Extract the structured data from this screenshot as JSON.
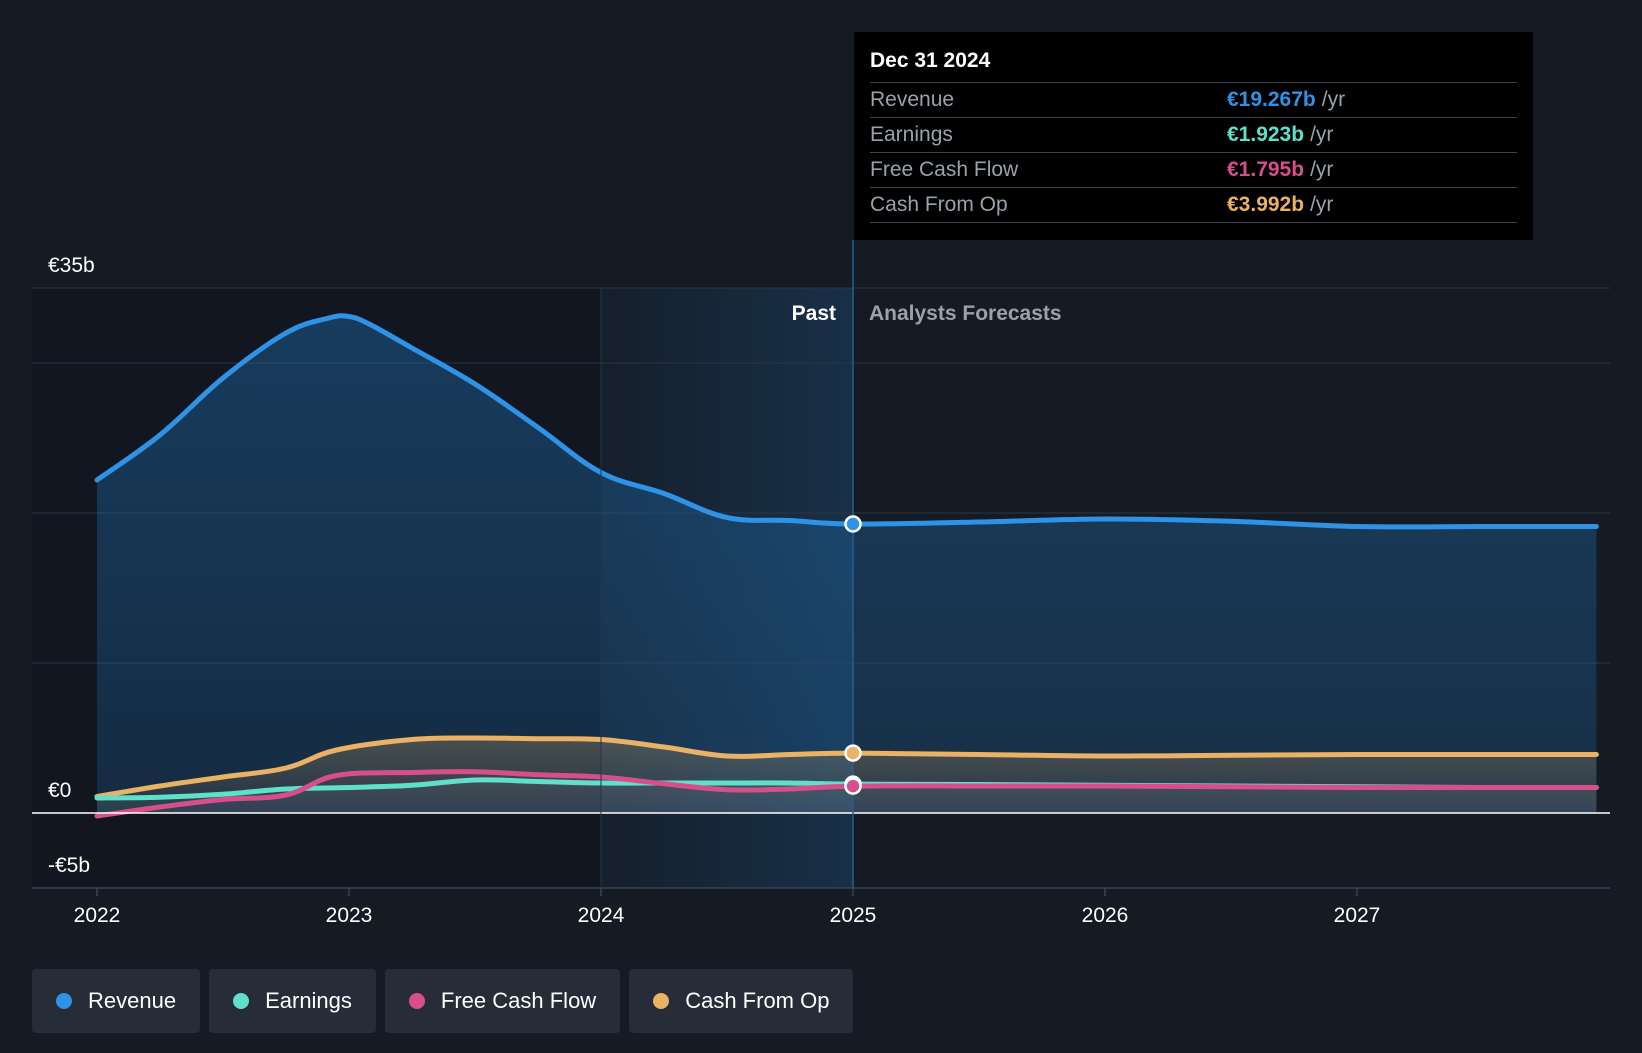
{
  "colors": {
    "background": "#151b25",
    "revenue": "#2e93e6",
    "earnings": "#5ee0cb",
    "free_cash_flow": "#d64f8b",
    "cash_from_op": "#e9b264",
    "past_shade": "#1a4a73"
  },
  "labels": {
    "past": "Past",
    "forecast": "Analysts Forecasts"
  },
  "tooltip": {
    "date": "Dec 31 2024",
    "rows": [
      {
        "label": "Revenue",
        "value": "€19.267b",
        "unit": "/yr",
        "color": "#2e93e6"
      },
      {
        "label": "Earnings",
        "value": "€1.923b",
        "unit": "/yr",
        "color": "#5ee0cb"
      },
      {
        "label": "Free Cash Flow",
        "value": "€1.795b",
        "unit": "/yr",
        "color": "#d64f8b"
      },
      {
        "label": "Cash From Op",
        "value": "€3.992b",
        "unit": "/yr",
        "color": "#e9b264"
      }
    ]
  },
  "legend": [
    {
      "label": "Revenue",
      "color": "#2e93e6",
      "icon": "revenue-dot-icon"
    },
    {
      "label": "Earnings",
      "color": "#5ee0cb",
      "icon": "earnings-dot-icon"
    },
    {
      "label": "Free Cash Flow",
      "color": "#d64f8b",
      "icon": "free-cash-flow-dot-icon"
    },
    {
      "label": "Cash From Op",
      "color": "#e9b264",
      "icon": "cash-from-op-dot-icon"
    }
  ],
  "chart_data": {
    "type": "line",
    "title": "",
    "xlabel": "",
    "ylabel": "",
    "ylim": [
      -5,
      35
    ],
    "xlim": [
      2021.75,
      2027.95
    ],
    "y_tick_labels": [
      {
        "value": 35,
        "label": "€35b"
      },
      {
        "value": 0,
        "label": "€0"
      },
      {
        "value": -5,
        "label": "-€5b"
      }
    ],
    "y_gridlines": [
      35,
      30,
      20,
      10,
      -5
    ],
    "x_ticks": [
      {
        "value": 2022,
        "label": "2022"
      },
      {
        "value": 2023,
        "label": "2023"
      },
      {
        "value": 2024,
        "label": "2024"
      },
      {
        "value": 2025,
        "label": "2025"
      },
      {
        "value": 2026,
        "label": "2026"
      },
      {
        "value": 2027,
        "label": "2027"
      }
    ],
    "past_shade_range": [
      2024,
      2025
    ],
    "divider_x": 2025,
    "marker_x": 2025,
    "series": [
      {
        "name": "Revenue",
        "key": "revenue",
        "x": [
          2022,
          2022.25,
          2022.5,
          2022.75,
          2022.92,
          2023,
          2023.08,
          2023.25,
          2023.5,
          2023.75,
          2024,
          2024.25,
          2024.5,
          2024.75,
          2025,
          2025.5,
          2026,
          2026.5,
          2027,
          2027.5,
          2027.95
        ],
        "values": [
          22.2,
          25.2,
          29.0,
          32.0,
          33.0,
          33.1,
          32.6,
          31.0,
          28.6,
          25.7,
          22.7,
          21.3,
          19.7,
          19.5,
          19.267,
          19.4,
          19.6,
          19.45,
          19.1,
          19.1,
          19.1
        ],
        "forecast_from": 2025
      },
      {
        "name": "Earnings",
        "key": "earnings",
        "x": [
          2022,
          2022.25,
          2022.5,
          2022.75,
          2023,
          2023.25,
          2023.5,
          2023.75,
          2024,
          2024.25,
          2024.5,
          2024.75,
          2025,
          2025.5,
          2026,
          2026.5,
          2027,
          2027.5,
          2027.95
        ],
        "values": [
          1.0,
          1.05,
          1.25,
          1.6,
          1.7,
          1.85,
          2.2,
          2.1,
          2.0,
          2.0,
          2.0,
          2.0,
          1.923,
          1.9,
          1.85,
          1.8,
          1.75,
          1.7,
          1.7
        ],
        "forecast_from": 2025
      },
      {
        "name": "Free Cash Flow",
        "key": "free_cash_flow",
        "x": [
          2022,
          2022.25,
          2022.5,
          2022.75,
          2022.95,
          2023.25,
          2023.5,
          2023.75,
          2024,
          2024.25,
          2024.5,
          2024.75,
          2025,
          2025.5,
          2026,
          2026.5,
          2027,
          2027.5,
          2027.95
        ],
        "values": [
          -0.2,
          0.4,
          0.9,
          1.2,
          2.5,
          2.7,
          2.75,
          2.55,
          2.4,
          1.95,
          1.55,
          1.6,
          1.795,
          1.8,
          1.8,
          1.75,
          1.7,
          1.7,
          1.7
        ],
        "forecast_from": 2025
      },
      {
        "name": "Cash From Op",
        "key": "cash_from_op",
        "x": [
          2022,
          2022.25,
          2022.5,
          2022.75,
          2022.95,
          2023.25,
          2023.5,
          2023.75,
          2024,
          2024.25,
          2024.5,
          2024.75,
          2025,
          2025.5,
          2026,
          2026.5,
          2027,
          2027.5,
          2027.95
        ],
        "values": [
          1.1,
          1.8,
          2.4,
          3.0,
          4.2,
          4.9,
          5.0,
          4.95,
          4.9,
          4.4,
          3.8,
          3.9,
          3.992,
          3.9,
          3.8,
          3.85,
          3.9,
          3.9,
          3.9
        ],
        "forecast_from": 2025
      }
    ]
  }
}
